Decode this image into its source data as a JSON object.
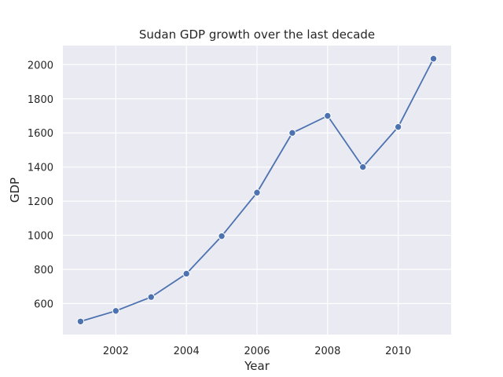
{
  "chart_data": {
    "type": "line",
    "title": "Sudan GDP growth over the last decade",
    "xlabel": "Year",
    "ylabel": "GDP",
    "x": [
      2001,
      2002,
      2003,
      2004,
      2005,
      2006,
      2007,
      2008,
      2009,
      2010,
      2011
    ],
    "series": [
      {
        "values": [
          495,
          557,
          638,
          775,
          995,
          1250,
          1600,
          1700,
          1400,
          1635,
          2035
        ]
      }
    ],
    "xticks": [
      2002,
      2004,
      2006,
      2008,
      2010
    ],
    "yticks": [
      600,
      800,
      1000,
      1200,
      1400,
      1600,
      1800,
      2000
    ],
    "xlim": [
      2000.5,
      2011.5
    ],
    "ylim": [
      418,
      2112
    ],
    "grid": true,
    "marker": "circle",
    "colors": {
      "background": "#eaeaf2",
      "grid": "#ffffff",
      "line": "#4c72b0",
      "text": "#262626"
    }
  }
}
